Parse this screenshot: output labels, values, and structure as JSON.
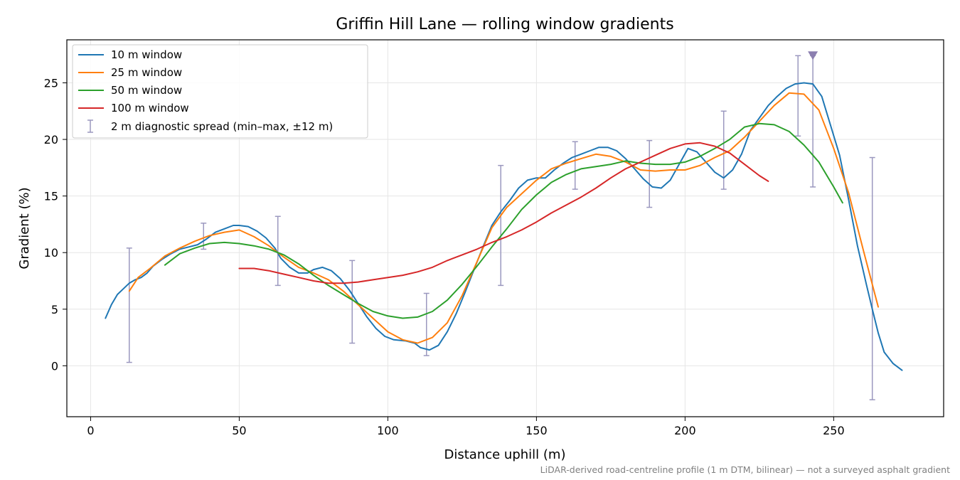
{
  "chart_data": {
    "type": "line",
    "title": "Griffin Hill Lane — rolling window gradients",
    "xlabel": "Distance uphill (m)",
    "ylabel": "Gradient (%)",
    "xlim": [
      -8,
      287
    ],
    "ylim": [
      -4.5,
      28.8
    ],
    "xticks": [
      0,
      50,
      100,
      150,
      200,
      250
    ],
    "yticks": [
      0,
      5,
      10,
      15,
      20,
      25
    ],
    "grid": true,
    "legend_position": "top-left",
    "footnote": "LiDAR-derived road-centreline profile (1 m DTM, bilinear) — not a surveyed asphalt gradient",
    "series": [
      {
        "name": "10 m window",
        "color": "#1f77b4",
        "points": [
          [
            5,
            4.2
          ],
          [
            7,
            5.4
          ],
          [
            9,
            6.3
          ],
          [
            11,
            6.8
          ],
          [
            13,
            7.3
          ],
          [
            15,
            7.6
          ],
          [
            17,
            7.8
          ],
          [
            19,
            8.2
          ],
          [
            21,
            8.8
          ],
          [
            24,
            9.4
          ],
          [
            27,
            9.9
          ],
          [
            30,
            10.3
          ],
          [
            33,
            10.5
          ],
          [
            36,
            10.7
          ],
          [
            39,
            11.2
          ],
          [
            42,
            11.8
          ],
          [
            45,
            12.1
          ],
          [
            48,
            12.4
          ],
          [
            50,
            12.4
          ],
          [
            53,
            12.3
          ],
          [
            56,
            11.9
          ],
          [
            59,
            11.3
          ],
          [
            62,
            10.4
          ],
          [
            64,
            9.5
          ],
          [
            67,
            8.7
          ],
          [
            70,
            8.2
          ],
          [
            73,
            8.2
          ],
          [
            75,
            8.5
          ],
          [
            78,
            8.7
          ],
          [
            81,
            8.4
          ],
          [
            84,
            7.7
          ],
          [
            87,
            6.7
          ],
          [
            90,
            5.5
          ],
          [
            93,
            4.3
          ],
          [
            96,
            3.3
          ],
          [
            99,
            2.6
          ],
          [
            102,
            2.3
          ],
          [
            106,
            2.2
          ],
          [
            109,
            2.0
          ],
          [
            111,
            1.6
          ],
          [
            114,
            1.4
          ],
          [
            117,
            1.8
          ],
          [
            120,
            3.0
          ],
          [
            123,
            4.6
          ],
          [
            126,
            6.5
          ],
          [
            129,
            8.5
          ],
          [
            132,
            10.5
          ],
          [
            135,
            12.4
          ],
          [
            138,
            13.6
          ],
          [
            141,
            14.6
          ],
          [
            144,
            15.7
          ],
          [
            147,
            16.4
          ],
          [
            150,
            16.6
          ],
          [
            153,
            16.6
          ],
          [
            156,
            17.3
          ],
          [
            159,
            17.9
          ],
          [
            162,
            18.4
          ],
          [
            165,
            18.7
          ],
          [
            168,
            19.0
          ],
          [
            171,
            19.3
          ],
          [
            174,
            19.3
          ],
          [
            177,
            19.0
          ],
          [
            180,
            18.3
          ],
          [
            183,
            17.4
          ],
          [
            186,
            16.5
          ],
          [
            189,
            15.8
          ],
          [
            192,
            15.7
          ],
          [
            195,
            16.4
          ],
          [
            198,
            17.8
          ],
          [
            201,
            19.2
          ],
          [
            204,
            18.9
          ],
          [
            207,
            18.0
          ],
          [
            210,
            17.1
          ],
          [
            213,
            16.6
          ],
          [
            216,
            17.3
          ],
          [
            219,
            18.7
          ],
          [
            222,
            20.8
          ],
          [
            225,
            21.9
          ],
          [
            228,
            23.0
          ],
          [
            231,
            23.8
          ],
          [
            234,
            24.5
          ],
          [
            237,
            24.9
          ],
          [
            240,
            25.0
          ],
          [
            243,
            24.9
          ],
          [
            246,
            23.8
          ],
          [
            249,
            21.2
          ],
          [
            252,
            18.6
          ],
          [
            255,
            14.7
          ],
          [
            258,
            10.6
          ],
          [
            261,
            7.2
          ],
          [
            263,
            5.0
          ],
          [
            265,
            2.9
          ],
          [
            267,
            1.2
          ],
          [
            270,
            0.2
          ],
          [
            273,
            -0.4
          ]
        ]
      },
      {
        "name": "25 m window",
        "color": "#ff7f0e",
        "points": [
          [
            13,
            6.6
          ],
          [
            16,
            7.8
          ],
          [
            20,
            8.6
          ],
          [
            25,
            9.7
          ],
          [
            30,
            10.4
          ],
          [
            35,
            11.0
          ],
          [
            40,
            11.5
          ],
          [
            45,
            11.8
          ],
          [
            50,
            12.0
          ],
          [
            55,
            11.4
          ],
          [
            60,
            10.6
          ],
          [
            65,
            9.6
          ],
          [
            70,
            8.7
          ],
          [
            75,
            8.2
          ],
          [
            80,
            7.6
          ],
          [
            85,
            6.6
          ],
          [
            90,
            5.4
          ],
          [
            95,
            4.2
          ],
          [
            100,
            3.0
          ],
          [
            105,
            2.3
          ],
          [
            110,
            2.0
          ],
          [
            115,
            2.5
          ],
          [
            120,
            3.8
          ],
          [
            125,
            6.2
          ],
          [
            130,
            9.2
          ],
          [
            135,
            12.2
          ],
          [
            140,
            14.0
          ],
          [
            145,
            15.2
          ],
          [
            150,
            16.4
          ],
          [
            155,
            17.4
          ],
          [
            160,
            17.9
          ],
          [
            165,
            18.3
          ],
          [
            170,
            18.7
          ],
          [
            175,
            18.5
          ],
          [
            180,
            18.0
          ],
          [
            185,
            17.3
          ],
          [
            190,
            17.2
          ],
          [
            195,
            17.3
          ],
          [
            200,
            17.3
          ],
          [
            205,
            17.7
          ],
          [
            210,
            18.4
          ],
          [
            215,
            19.0
          ],
          [
            220,
            20.2
          ],
          [
            225,
            21.6
          ],
          [
            230,
            23.0
          ],
          [
            235,
            24.1
          ],
          [
            240,
            24.0
          ],
          [
            245,
            22.6
          ],
          [
            250,
            19.2
          ],
          [
            255,
            15.3
          ],
          [
            260,
            10.2
          ],
          [
            265,
            5.2
          ]
        ]
      },
      {
        "name": "50 m window",
        "color": "#2ca02c",
        "points": [
          [
            25,
            8.9
          ],
          [
            30,
            9.9
          ],
          [
            35,
            10.4
          ],
          [
            40,
            10.8
          ],
          [
            45,
            10.9
          ],
          [
            50,
            10.8
          ],
          [
            55,
            10.6
          ],
          [
            60,
            10.3
          ],
          [
            65,
            9.8
          ],
          [
            70,
            9.0
          ],
          [
            75,
            8.0
          ],
          [
            80,
            7.1
          ],
          [
            85,
            6.3
          ],
          [
            90,
            5.5
          ],
          [
            95,
            4.8
          ],
          [
            100,
            4.4
          ],
          [
            105,
            4.2
          ],
          [
            110,
            4.3
          ],
          [
            115,
            4.8
          ],
          [
            120,
            5.8
          ],
          [
            125,
            7.2
          ],
          [
            130,
            8.8
          ],
          [
            135,
            10.5
          ],
          [
            140,
            12.1
          ],
          [
            145,
            13.8
          ],
          [
            150,
            15.1
          ],
          [
            155,
            16.2
          ],
          [
            160,
            16.9
          ],
          [
            165,
            17.4
          ],
          [
            170,
            17.6
          ],
          [
            175,
            17.8
          ],
          [
            180,
            18.1
          ],
          [
            185,
            17.9
          ],
          [
            190,
            17.8
          ],
          [
            195,
            17.8
          ],
          [
            200,
            18.0
          ],
          [
            205,
            18.5
          ],
          [
            210,
            19.2
          ],
          [
            215,
            20.0
          ],
          [
            220,
            21.1
          ],
          [
            225,
            21.4
          ],
          [
            230,
            21.3
          ],
          [
            235,
            20.7
          ],
          [
            240,
            19.5
          ],
          [
            245,
            18.0
          ],
          [
            250,
            15.8
          ],
          [
            253,
            14.4
          ]
        ]
      },
      {
        "name": "100 m window",
        "color": "#d62728",
        "points": [
          [
            50,
            8.6
          ],
          [
            55,
            8.6
          ],
          [
            60,
            8.4
          ],
          [
            65,
            8.1
          ],
          [
            70,
            7.8
          ],
          [
            75,
            7.5
          ],
          [
            80,
            7.3
          ],
          [
            85,
            7.3
          ],
          [
            90,
            7.4
          ],
          [
            95,
            7.6
          ],
          [
            100,
            7.8
          ],
          [
            105,
            8.0
          ],
          [
            110,
            8.3
          ],
          [
            115,
            8.7
          ],
          [
            120,
            9.3
          ],
          [
            125,
            9.8
          ],
          [
            130,
            10.3
          ],
          [
            135,
            10.9
          ],
          [
            140,
            11.4
          ],
          [
            145,
            12.0
          ],
          [
            150,
            12.7
          ],
          [
            155,
            13.5
          ],
          [
            160,
            14.2
          ],
          [
            165,
            14.9
          ],
          [
            170,
            15.7
          ],
          [
            175,
            16.6
          ],
          [
            180,
            17.4
          ],
          [
            185,
            18.0
          ],
          [
            190,
            18.6
          ],
          [
            195,
            19.2
          ],
          [
            200,
            19.6
          ],
          [
            205,
            19.7
          ],
          [
            210,
            19.4
          ],
          [
            215,
            18.8
          ],
          [
            220,
            17.8
          ],
          [
            225,
            16.8
          ],
          [
            228,
            16.3
          ]
        ]
      }
    ],
    "spread": {
      "name": "2 m diagnostic spread (min–max, ±12 m)",
      "color": "#9b98bf",
      "bars": [
        {
          "x": 13,
          "min": 0.3,
          "max": 10.4
        },
        {
          "x": 38,
          "min": 10.3,
          "max": 12.6
        },
        {
          "x": 63,
          "min": 7.1,
          "max": 13.2
        },
        {
          "x": 88,
          "min": 2.0,
          "max": 9.3
        },
        {
          "x": 113,
          "min": 0.9,
          "max": 6.4
        },
        {
          "x": 138,
          "min": 7.1,
          "max": 17.7
        },
        {
          "x": 163,
          "min": 15.6,
          "max": 19.8
        },
        {
          "x": 188,
          "min": 14.0,
          "max": 19.9
        },
        {
          "x": 213,
          "min": 15.6,
          "max": 22.5
        },
        {
          "x": 238,
          "min": 20.3,
          "max": 27.4
        },
        {
          "x": 243,
          "min": 15.8,
          "max": 27.4
        },
        {
          "x": 263,
          "min": -3.0,
          "max": 18.4
        }
      ]
    },
    "peak_marker": {
      "x": 243,
      "y": 27.4,
      "color": "#8c7fb0",
      "shape": "triangle-down"
    }
  }
}
